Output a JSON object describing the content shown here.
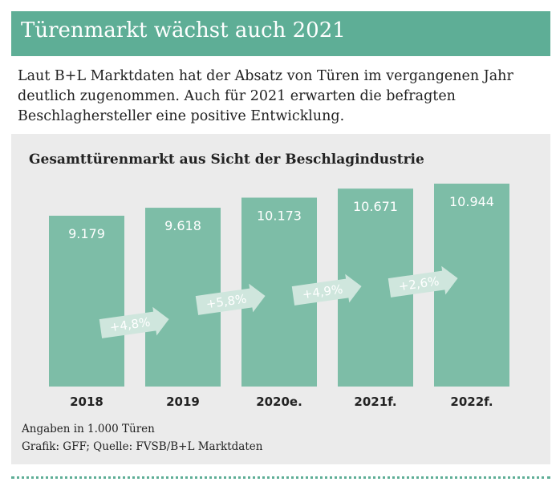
{
  "header": {
    "title": "Türenmarkt wächst auch 2021",
    "accent_color": "#5eae96"
  },
  "intro": {
    "text": "Laut B+L Marktdaten hat der Absatz von Türen im vergangenen Jahr deutlich zugenommen. Auch für 2021 erwarten die befragten Beschlaghersteller eine positive Entwicklung."
  },
  "chart_data": {
    "type": "bar",
    "title": "Gesamttürenmarkt aus Sicht der Beschlagindustrie",
    "categories": [
      "2018",
      "2019",
      "2020e.",
      "2021f.",
      "2022f."
    ],
    "values": [
      9179,
      9618,
      10173,
      10671,
      10944
    ],
    "value_labels": [
      "9.179",
      "9.618",
      "10.173",
      "10.671",
      "10.944"
    ],
    "growth_labels": [
      "+4,8%",
      "+5,8%",
      "+4,9%",
      "+2,6%"
    ],
    "bar_color": "#7dbda7",
    "arrow_color": "#cfe6dd",
    "unit_note": "Angaben in 1.000 Türen",
    "source": "Grafik: GFF; Quelle: FVSB/B+L Marktdaten"
  }
}
